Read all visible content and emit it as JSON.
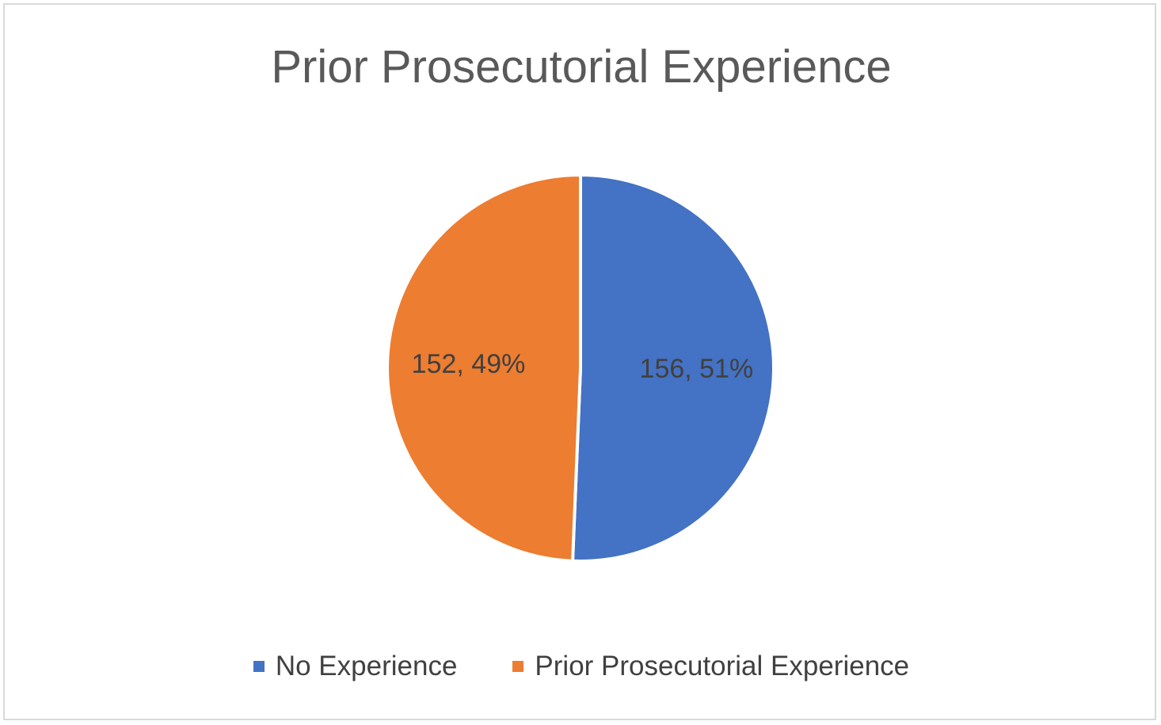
{
  "chart_data": {
    "type": "pie",
    "title": "Prior Prosecutorial Experience",
    "slices": [
      {
        "name": "No Experience",
        "value": 156,
        "percent": 51,
        "label": "156, 51%",
        "color": "#4472C4",
        "legend_color_name": "blue"
      },
      {
        "name": "Prior Prosecutorial Experience",
        "value": 152,
        "percent": 49,
        "label": "152, 49%",
        "color": "#ED7D31",
        "legend_color_name": "orange"
      }
    ],
    "legend_position": "bottom",
    "start_angle": "12 o'clock, clockwise"
  }
}
